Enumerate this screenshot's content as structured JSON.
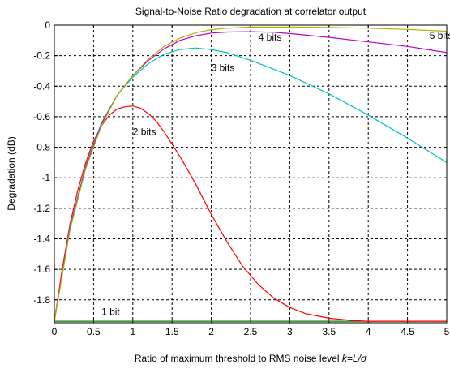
{
  "chart_data": {
    "type": "line",
    "title": "Signal-to-Noise Ratio degradation at correlator output",
    "xlabel": "Ratio of maximum threshold to RMS noise level ",
    "xlabel_formula": "k=L/σ",
    "ylabel": "Degradation (dB)",
    "xlim": [
      0,
      5
    ],
    "ylim": [
      -1.95,
      0
    ],
    "xticks": [
      0,
      0.5,
      1,
      1.5,
      2,
      2.5,
      3,
      3.5,
      4,
      4.5,
      5
    ],
    "xtick_labels": [
      "0",
      "0.5",
      "1",
      "1.5",
      "2",
      "2.5",
      "3",
      "3.5",
      "4",
      "4.5",
      "5"
    ],
    "yticks": [
      0,
      -0.2,
      -0.4,
      -0.6,
      -0.8,
      -1,
      -1.2,
      -1.4,
      -1.6,
      -1.8
    ],
    "ytick_labels": [
      "0",
      "-0.2",
      "-0.4",
      "-0.6",
      "-0.8",
      "-1",
      "-1.2",
      "-1.4",
      "-1.6",
      "-1.8"
    ],
    "grid": true,
    "series": [
      {
        "name": "1 bit",
        "color": "#008000",
        "label_at": [
          0.6,
          -1.9
        ],
        "x": [
          0,
          5
        ],
        "y": [
          -1.94,
          -1.94
        ]
      },
      {
        "name": "2 bits",
        "color": "#ff0000",
        "label_at": [
          1.0,
          -0.72
        ],
        "x": [
          0,
          0.1,
          0.2,
          0.3,
          0.4,
          0.5,
          0.6,
          0.7,
          0.8,
          0.9,
          1.0,
          1.1,
          1.2,
          1.3,
          1.4,
          1.5,
          1.6,
          1.7,
          1.8,
          1.9,
          2.0,
          2.2,
          2.4,
          2.6,
          2.8,
          3.0,
          3.2,
          3.5,
          3.8,
          4.0,
          4.5,
          5.0
        ],
        "y": [
          -1.94,
          -1.6,
          -1.3,
          -1.08,
          -0.9,
          -0.76,
          -0.66,
          -0.59,
          -0.55,
          -0.535,
          -0.53,
          -0.545,
          -0.58,
          -0.63,
          -0.7,
          -0.78,
          -0.86,
          -0.95,
          -1.04,
          -1.14,
          -1.24,
          -1.42,
          -1.58,
          -1.7,
          -1.79,
          -1.85,
          -1.89,
          -1.92,
          -1.935,
          -1.94,
          -1.94,
          -1.94
        ]
      },
      {
        "name": "3 bits",
        "color": "#00c0c0",
        "label_at": [
          2.0,
          -0.3
        ],
        "x": [
          0,
          0.2,
          0.4,
          0.6,
          0.8,
          1.0,
          1.2,
          1.4,
          1.6,
          1.8,
          2.0,
          2.2,
          2.5,
          3.0,
          3.5,
          4.0,
          4.5,
          5.0
        ],
        "y": [
          -1.94,
          -1.32,
          -0.92,
          -0.64,
          -0.46,
          -0.34,
          -0.25,
          -0.19,
          -0.16,
          -0.15,
          -0.16,
          -0.18,
          -0.23,
          -0.33,
          -0.45,
          -0.59,
          -0.74,
          -0.9
        ]
      },
      {
        "name": "4 bits",
        "color": "#c000c0",
        "label_at": [
          2.6,
          -0.1
        ],
        "x": [
          0,
          0.2,
          0.4,
          0.6,
          0.8,
          1.0,
          1.2,
          1.4,
          1.6,
          1.8,
          2.0,
          2.2,
          2.5,
          2.8,
          3.0,
          3.5,
          4.0,
          4.5,
          5.0
        ],
        "y": [
          -1.94,
          -1.33,
          -0.93,
          -0.65,
          -0.46,
          -0.33,
          -0.23,
          -0.155,
          -0.1,
          -0.07,
          -0.052,
          -0.045,
          -0.043,
          -0.047,
          -0.055,
          -0.08,
          -0.11,
          -0.14,
          -0.18
        ]
      },
      {
        "name": "5 bits",
        "color": "#b0b000",
        "label_at": [
          4.78,
          -0.09
        ],
        "x": [
          0,
          0.2,
          0.4,
          0.6,
          0.8,
          1.0,
          1.2,
          1.4,
          1.6,
          1.8,
          2.0,
          2.2,
          2.5,
          3.0,
          3.5,
          4.0,
          4.5,
          5.0
        ],
        "y": [
          -1.94,
          -1.34,
          -0.94,
          -0.66,
          -0.46,
          -0.33,
          -0.22,
          -0.14,
          -0.085,
          -0.05,
          -0.03,
          -0.02,
          -0.013,
          -0.012,
          -0.015,
          -0.02,
          -0.028,
          -0.04
        ]
      }
    ]
  }
}
